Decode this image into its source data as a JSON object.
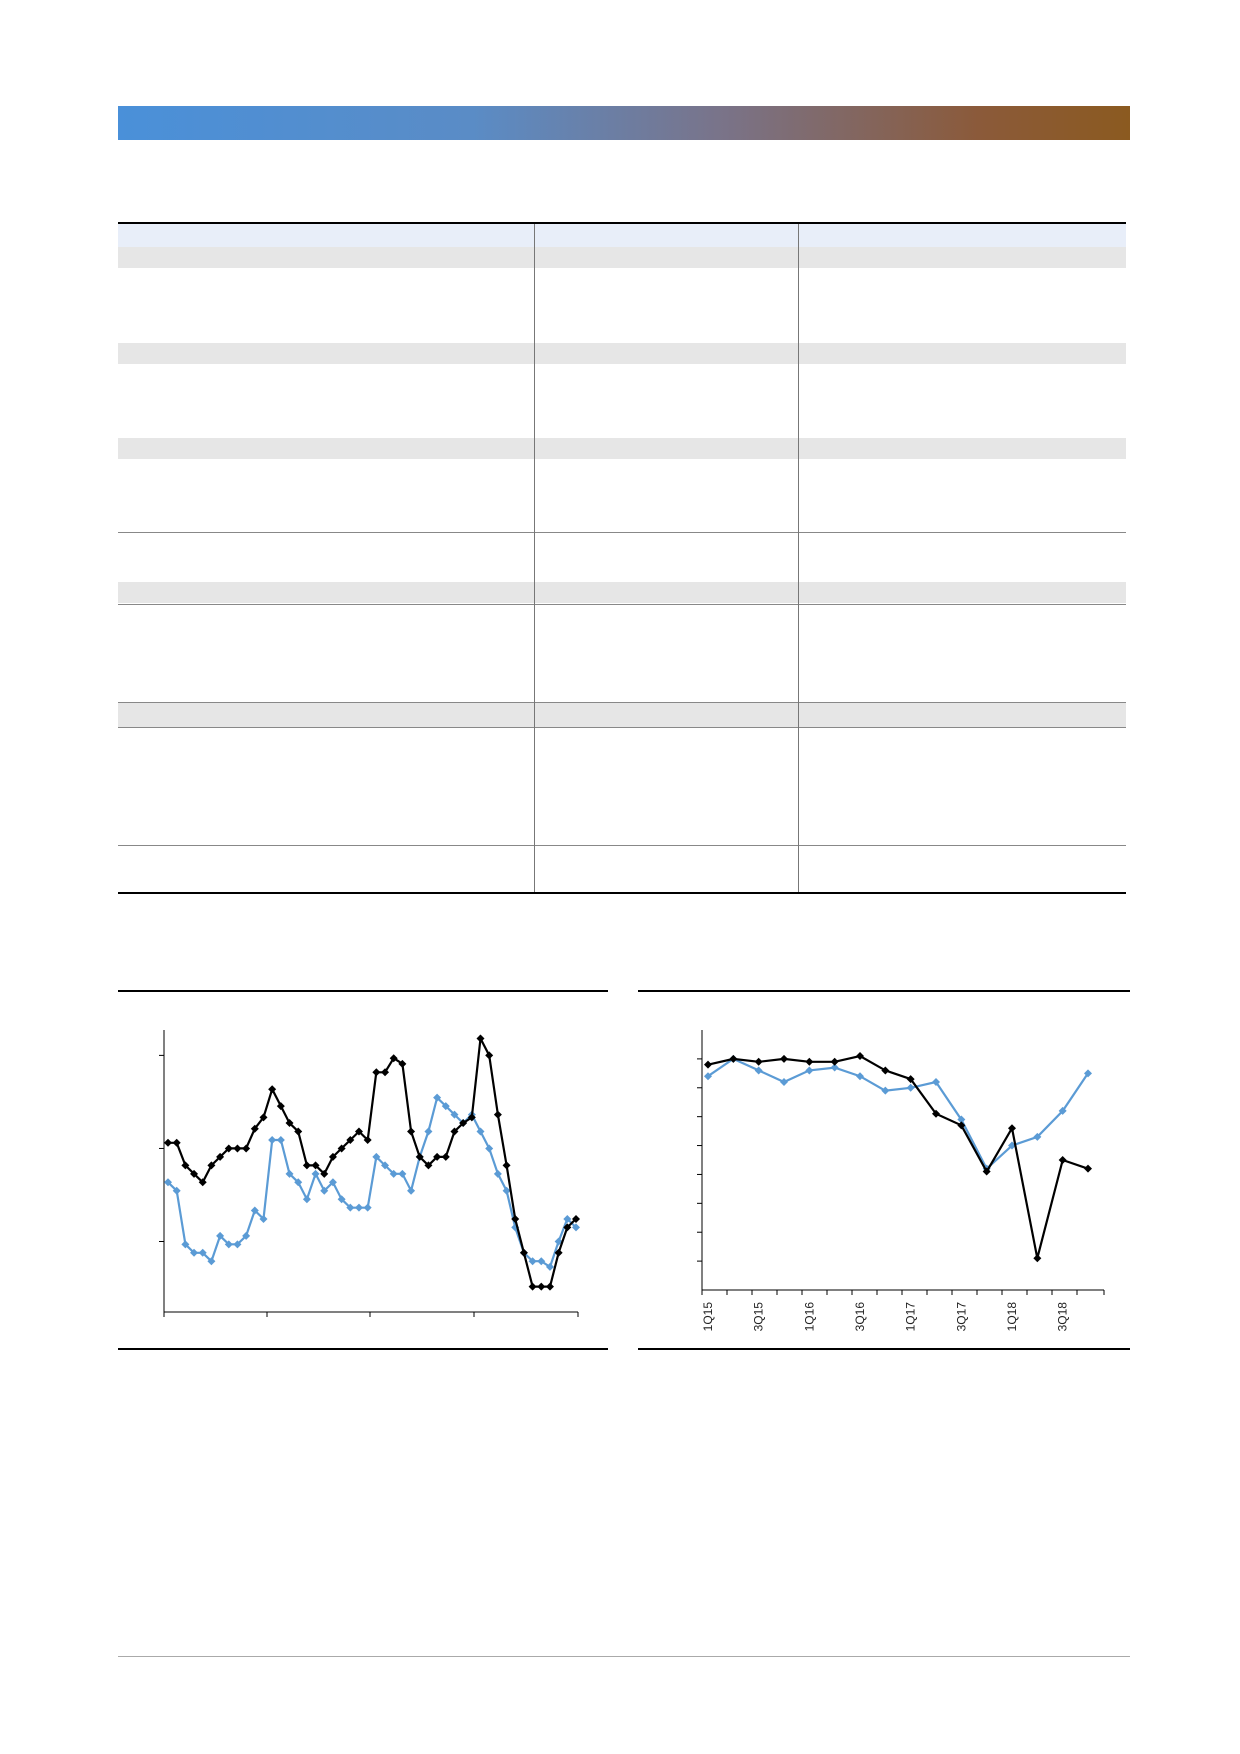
{
  "colors": {
    "banner_start": "#4a90d9",
    "banner_end": "#8b5a20",
    "series_black": "#000000",
    "series_blue": "#5b9bd5",
    "row_gray": "#e6e6e6",
    "row_blue": "#e8eef9"
  },
  "chart_data": [
    {
      "type": "line",
      "title": "",
      "xlabel": "",
      "ylabel": "",
      "ylim": [
        0,
        100
      ],
      "series": [
        {
          "values": [
            60,
            60,
            52,
            49,
            46,
            52,
            55,
            58,
            58,
            58,
            65,
            69,
            79,
            73,
            67,
            64,
            52,
            52,
            49,
            55,
            58,
            61,
            64,
            61,
            85,
            85,
            90,
            88,
            64,
            55,
            52,
            55,
            55,
            64,
            67,
            69,
            97,
            91,
            70,
            52,
            33,
            21,
            9,
            9,
            9,
            21,
            30,
            33
          ]
        },
        {
          "values": [
            46,
            43,
            24,
            21,
            21,
            18,
            27,
            24,
            24,
            27,
            36,
            33,
            61,
            61,
            49,
            46,
            40,
            49,
            43,
            46,
            40,
            37,
            37,
            37,
            55,
            52,
            49,
            49,
            43,
            55,
            64,
            76,
            73,
            70,
            67,
            70,
            64,
            58,
            49,
            43,
            30,
            21,
            18,
            18,
            16,
            25,
            33,
            30
          ]
        }
      ]
    },
    {
      "type": "line",
      "title": "",
      "xlabel": "",
      "ylabel": "",
      "ylim": [
        0,
        90
      ],
      "categories": [
        "1Q15",
        "2Q15",
        "3Q15",
        "4Q15",
        "1Q16",
        "2Q16",
        "3Q16",
        "4Q16",
        "1Q17",
        "2Q17",
        "3Q17",
        "4Q17",
        "1Q18",
        "2Q18",
        "3Q18",
        "4Q18"
      ],
      "x_tick_labels": [
        "1Q15",
        "3Q15",
        "1Q16",
        "3Q16",
        "1Q17",
        "3Q17",
        "1Q18",
        "3Q18"
      ],
      "series": [
        {
          "values": [
            78,
            80,
            79,
            80,
            79,
            79,
            81,
            76,
            73,
            61,
            57,
            41,
            56,
            11,
            45,
            42
          ]
        },
        {
          "values": [
            74,
            80,
            76,
            72,
            76,
            77,
            74,
            69,
            70,
            72,
            59,
            42,
            50,
            53,
            62,
            75
          ]
        }
      ]
    }
  ]
}
